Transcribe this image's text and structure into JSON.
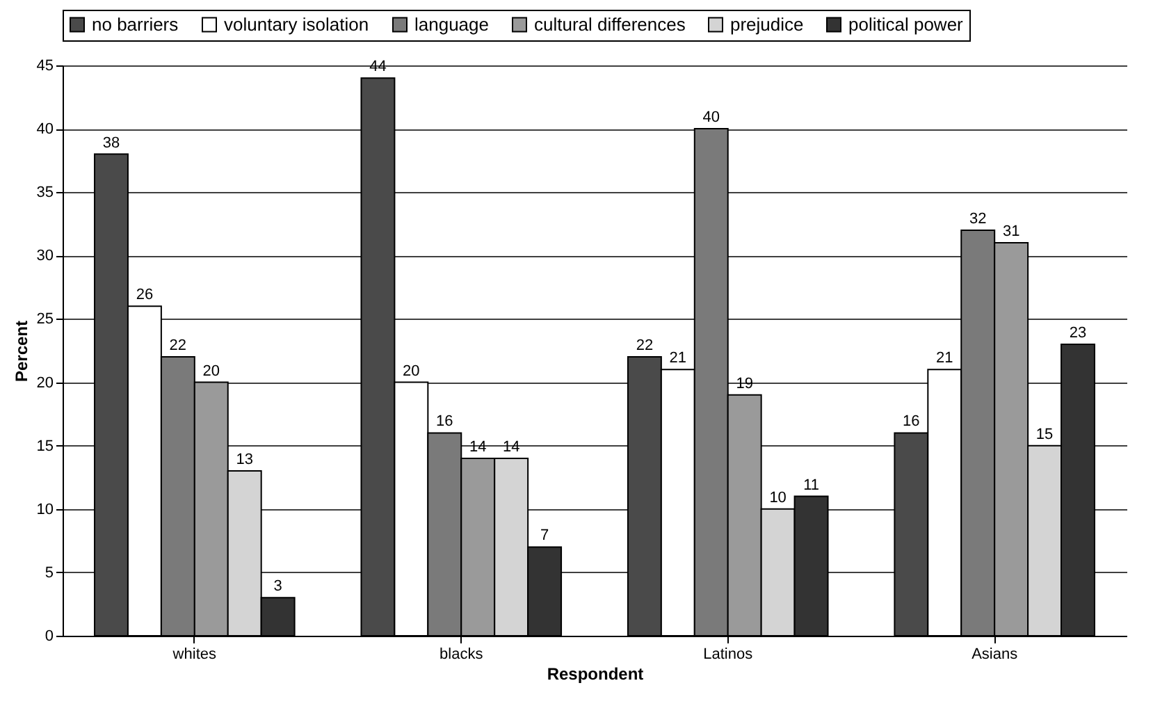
{
  "chart_data": {
    "type": "bar",
    "xlabel": "Respondent",
    "ylabel": "Percent",
    "categories": [
      "whites",
      "blacks",
      "Latinos",
      "Asians"
    ],
    "series": [
      {
        "name": "no barriers",
        "color": "#4a4a4a",
        "values": [
          38,
          44,
          22,
          16
        ]
      },
      {
        "name": "voluntary isolation",
        "color": "#ffffff",
        "values": [
          26,
          20,
          21,
          21
        ]
      },
      {
        "name": "language",
        "color": "#7a7a7a",
        "values": [
          22,
          16,
          40,
          32
        ]
      },
      {
        "name": "cultural differences",
        "color": "#9a9a9a",
        "values": [
          20,
          14,
          19,
          31
        ]
      },
      {
        "name": "prejudice",
        "color": "#d4d4d4",
        "values": [
          13,
          14,
          10,
          15
        ]
      },
      {
        "name": "political power",
        "color": "#333333",
        "values": [
          3,
          7,
          11,
          23
        ]
      }
    ],
    "ylim": [
      0,
      45
    ],
    "yticks": [
      0,
      5,
      10,
      15,
      20,
      25,
      30,
      35,
      40,
      45
    ],
    "grid": "y",
    "legend": "top",
    "data_labels": true
  }
}
